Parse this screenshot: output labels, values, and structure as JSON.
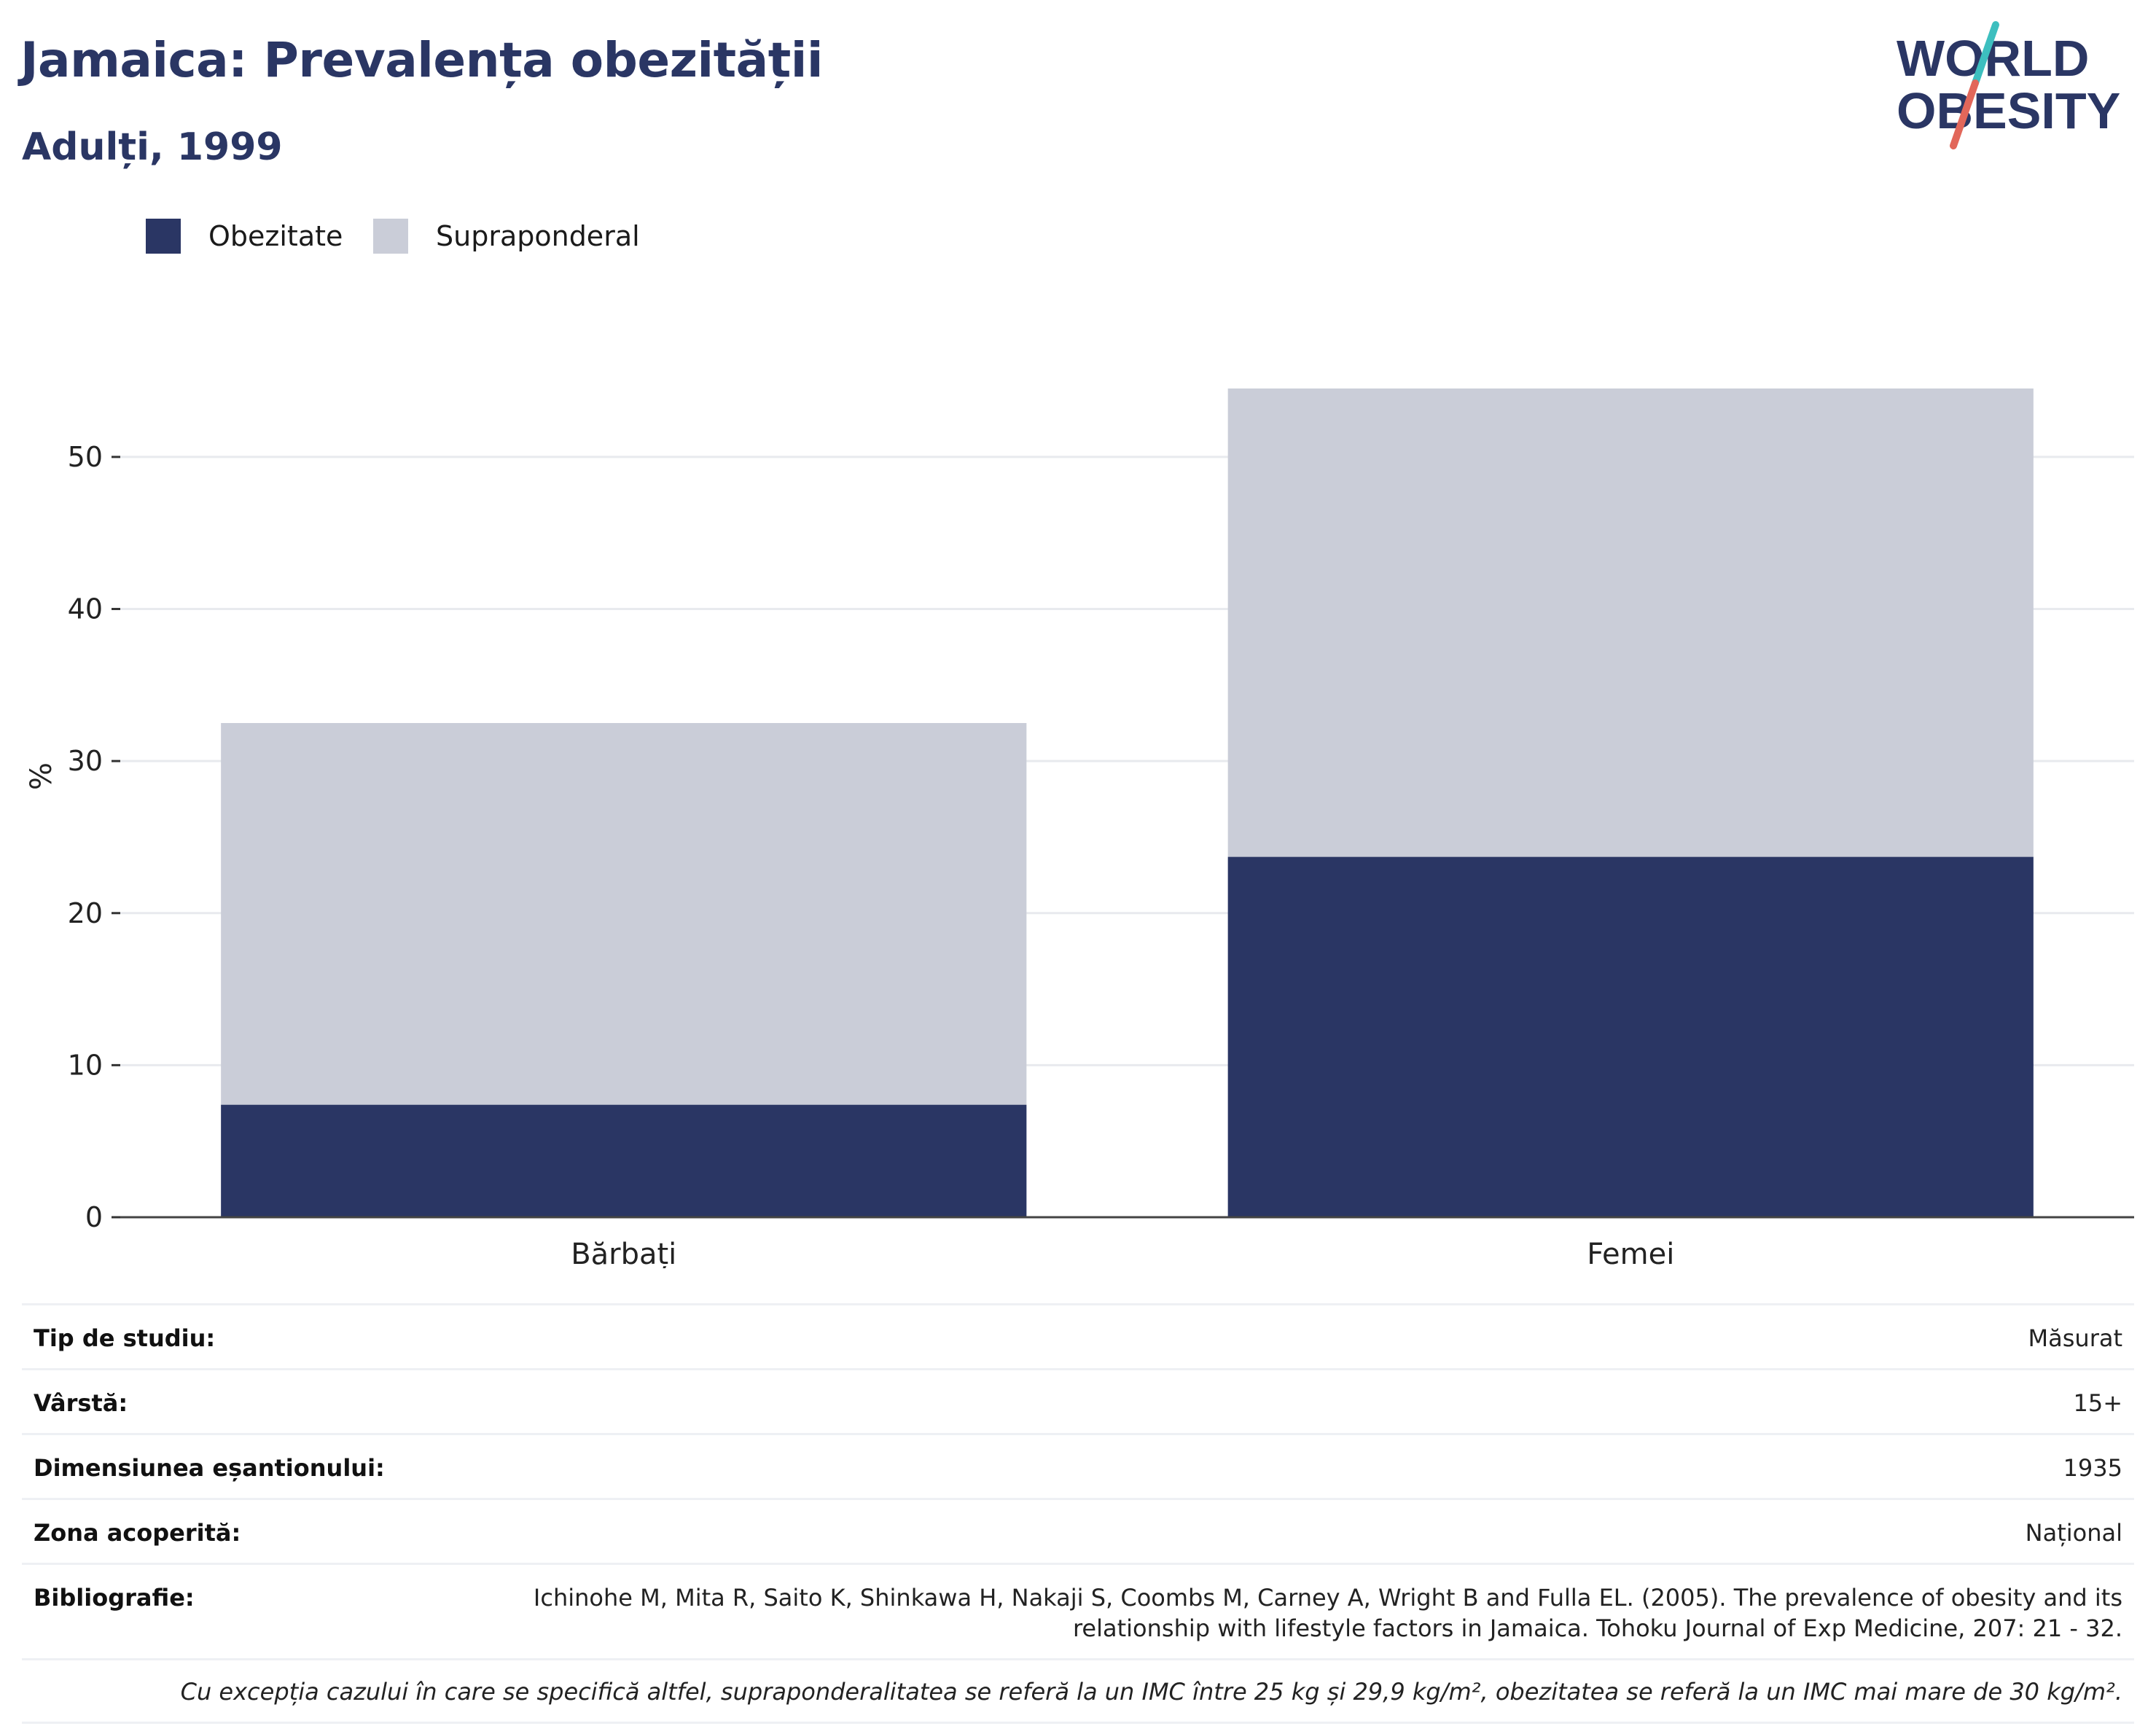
{
  "header": {
    "title": "Jamaica: Prevalența obezității",
    "subtitle": "Adulți, 1999"
  },
  "logo": {
    "line1": "WORLD",
    "line2": "OBESITY",
    "colors": {
      "text": "#2a3664",
      "slash_top": "#3dbfbf",
      "slash_bottom": "#e2675a"
    }
  },
  "legend": [
    {
      "label": "Obezitate",
      "color": "#2a3664"
    },
    {
      "label": "Supraponderal",
      "color": "#cacdd8"
    }
  ],
  "chart_data": {
    "type": "bar",
    "stacked": true,
    "categories": [
      "Bărbați",
      "Femei"
    ],
    "series": [
      {
        "name": "Obezitate",
        "color": "#2a3664",
        "values": [
          7.4,
          23.7
        ]
      },
      {
        "name": "Supraponderal",
        "color": "#cacdd8",
        "values": [
          25.1,
          30.8
        ]
      }
    ],
    "ylabel": "%",
    "xlabel": "",
    "ylim": [
      0,
      58
    ],
    "yticks": [
      0,
      10,
      20,
      30,
      40,
      50
    ],
    "grid": true,
    "legend_position": "top-left"
  },
  "info": {
    "rows": [
      {
        "label": "Tip de studiu:",
        "value": "Măsurat"
      },
      {
        "label": "Vârstă:",
        "value": "15+"
      },
      {
        "label": "Dimensiunea eșantionului:",
        "value": "1935"
      },
      {
        "label": "Zona acoperită:",
        "value": "Național"
      },
      {
        "label": "Bibliografie:",
        "value": "Ichinohe M, Mita R, Saito K, Shinkawa H, Nakaji S, Coombs M, Carney A, Wright B and Fulla EL. (2005). The prevalence of obesity and its relationship with lifestyle factors in Jamaica. Tohoku Journal of Exp Medicine, 207: 21 - 32."
      }
    ],
    "footnote": "Cu excepția cazului în care se specifică altfel, supraponderalitatea se referă la un IMC între 25 kg și 29,9 kg/m², obezitatea se referă la un IMC mai mare de 30 kg/m²."
  }
}
